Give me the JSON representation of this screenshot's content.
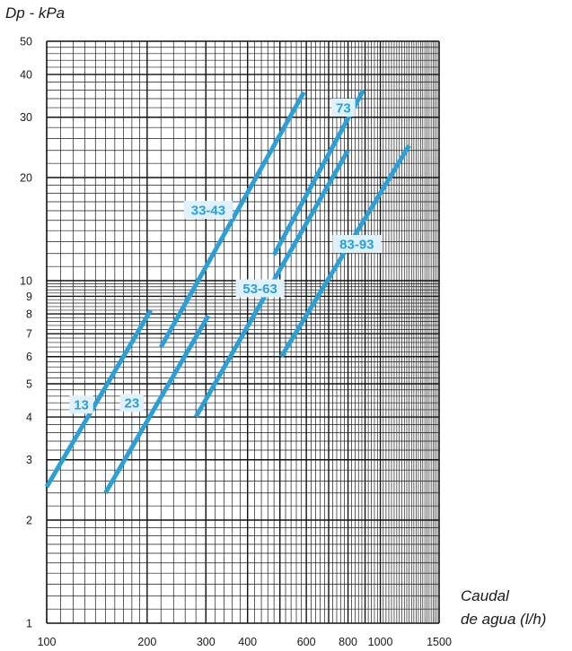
{
  "chart_data": {
    "type": "line",
    "title": "",
    "ylabel": "Dp - kPa",
    "xlabel_line1": "Caudal",
    "xlabel_line2": "de agua (l/h)",
    "x_scale": "log",
    "y_scale": "log",
    "xlim": [
      100,
      1500
    ],
    "ylim": [
      1,
      50
    ],
    "grid": true,
    "x_ticks": [
      {
        "value": 100,
        "label": "100"
      },
      {
        "value": 200,
        "label": "200"
      },
      {
        "value": 300,
        "label": "300"
      },
      {
        "value": 400,
        "label": "400"
      },
      {
        "value": 600,
        "label": "600"
      },
      {
        "value": 800,
        "label": "800"
      },
      {
        "value": 1000,
        "label": "1000"
      },
      {
        "value": 1500,
        "label": "1500"
      }
    ],
    "y_ticks": [
      {
        "value": 1,
        "label": "1"
      },
      {
        "value": 2,
        "label": "2"
      },
      {
        "value": 3,
        "label": "3"
      },
      {
        "value": 4,
        "label": "4"
      },
      {
        "value": 5,
        "label": "5"
      },
      {
        "value": 6,
        "label": "6"
      },
      {
        "value": 7,
        "label": "7"
      },
      {
        "value": 8,
        "label": "8"
      },
      {
        "value": 9,
        "label": "9"
      },
      {
        "value": 10,
        "label": "10"
      },
      {
        "value": 20,
        "label": "20"
      },
      {
        "value": 30,
        "label": "30"
      },
      {
        "value": 40,
        "label": "40"
      },
      {
        "value": 50,
        "label": "50"
      }
    ],
    "series_color": "#2c9fd6",
    "series": [
      {
        "name": "13",
        "x": [
          100,
          205
        ],
        "y": [
          2.5,
          8.2
        ],
        "label_at": [
          127,
          4.35
        ]
      },
      {
        "name": "23",
        "x": [
          150,
          305
        ],
        "y": [
          2.4,
          7.9
        ],
        "label_at": [
          180,
          4.4
        ]
      },
      {
        "name": "33-43",
        "x": [
          220,
          590
        ],
        "y": [
          6.4,
          35.5
        ],
        "label_at": [
          305,
          16.1
        ]
      },
      {
        "name": "53-63",
        "x": [
          280,
          800
        ],
        "y": [
          4.0,
          24.0
        ],
        "label_at": [
          436,
          9.5
        ]
      },
      {
        "name": "53-63",
        "x": [
          480,
          890
        ],
        "y": [
          11.9,
          36.0
        ],
        "label_at": null
      },
      {
        "name": "73",
        "x": null,
        "y": null,
        "label_at": [
          775,
          32.0
        ]
      },
      {
        "name": "83-93",
        "x": [
          505,
          1220
        ],
        "y": [
          6.0,
          24.8
        ],
        "label_at": [
          850,
          12.8
        ]
      }
    ],
    "labels": [
      "13",
      "23",
      "33-43",
      "53-63",
      "73",
      "83-93"
    ]
  }
}
